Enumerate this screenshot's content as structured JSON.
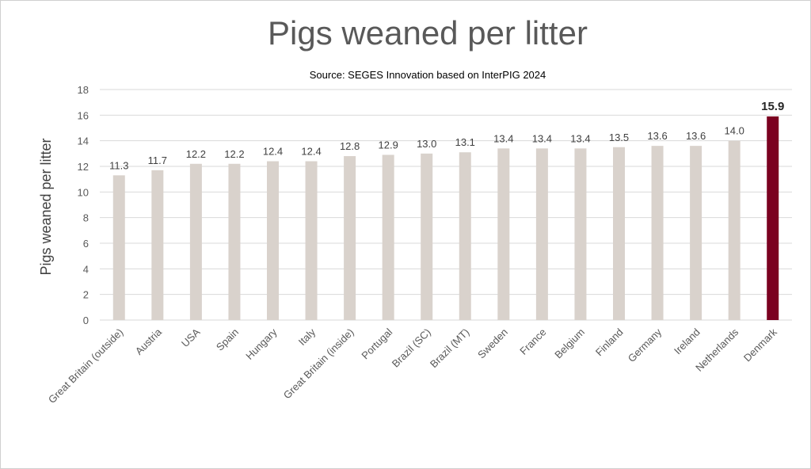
{
  "chart_data": {
    "type": "bar",
    "title": "Pigs weaned per litter",
    "subtitle": "Source: SEGES Innovation based on InterPIG 2024",
    "xlabel": "",
    "ylabel": "Pigs weaned per litter",
    "ylim": [
      0,
      18
    ],
    "yticks": [
      0,
      2,
      4,
      6,
      8,
      10,
      12,
      14,
      16,
      18
    ],
    "grid": true,
    "categories": [
      "Great Britain (outside)",
      "Austria",
      "USA",
      "Spain",
      "Hungary",
      "Italy",
      "Great Britain (inside)",
      "Portugal",
      "Brazil (SC)",
      "Brazil (MT)",
      "Sweden",
      "France",
      "Belgium",
      "Finland",
      "Germany",
      "Ireland",
      "Netherlands",
      "Denmark"
    ],
    "values": [
      11.3,
      11.7,
      12.2,
      12.2,
      12.4,
      12.4,
      12.8,
      12.9,
      13.0,
      13.1,
      13.4,
      13.4,
      13.4,
      13.5,
      13.6,
      13.6,
      14.0,
      15.9
    ],
    "value_labels": [
      "11.3",
      "11.7",
      "12.2",
      "12.2",
      "12.4",
      "12.4",
      "12.8",
      "12.9",
      "13.0",
      "13.1",
      "13.4",
      "13.4",
      "13.4",
      "13.5",
      "13.6",
      "13.6",
      "14.0",
      "15.9"
    ],
    "highlight": "Denmark",
    "colors": {
      "bar": "#d9d2cc",
      "highlight": "#7b0020",
      "grid": "#d9d9d9"
    }
  }
}
